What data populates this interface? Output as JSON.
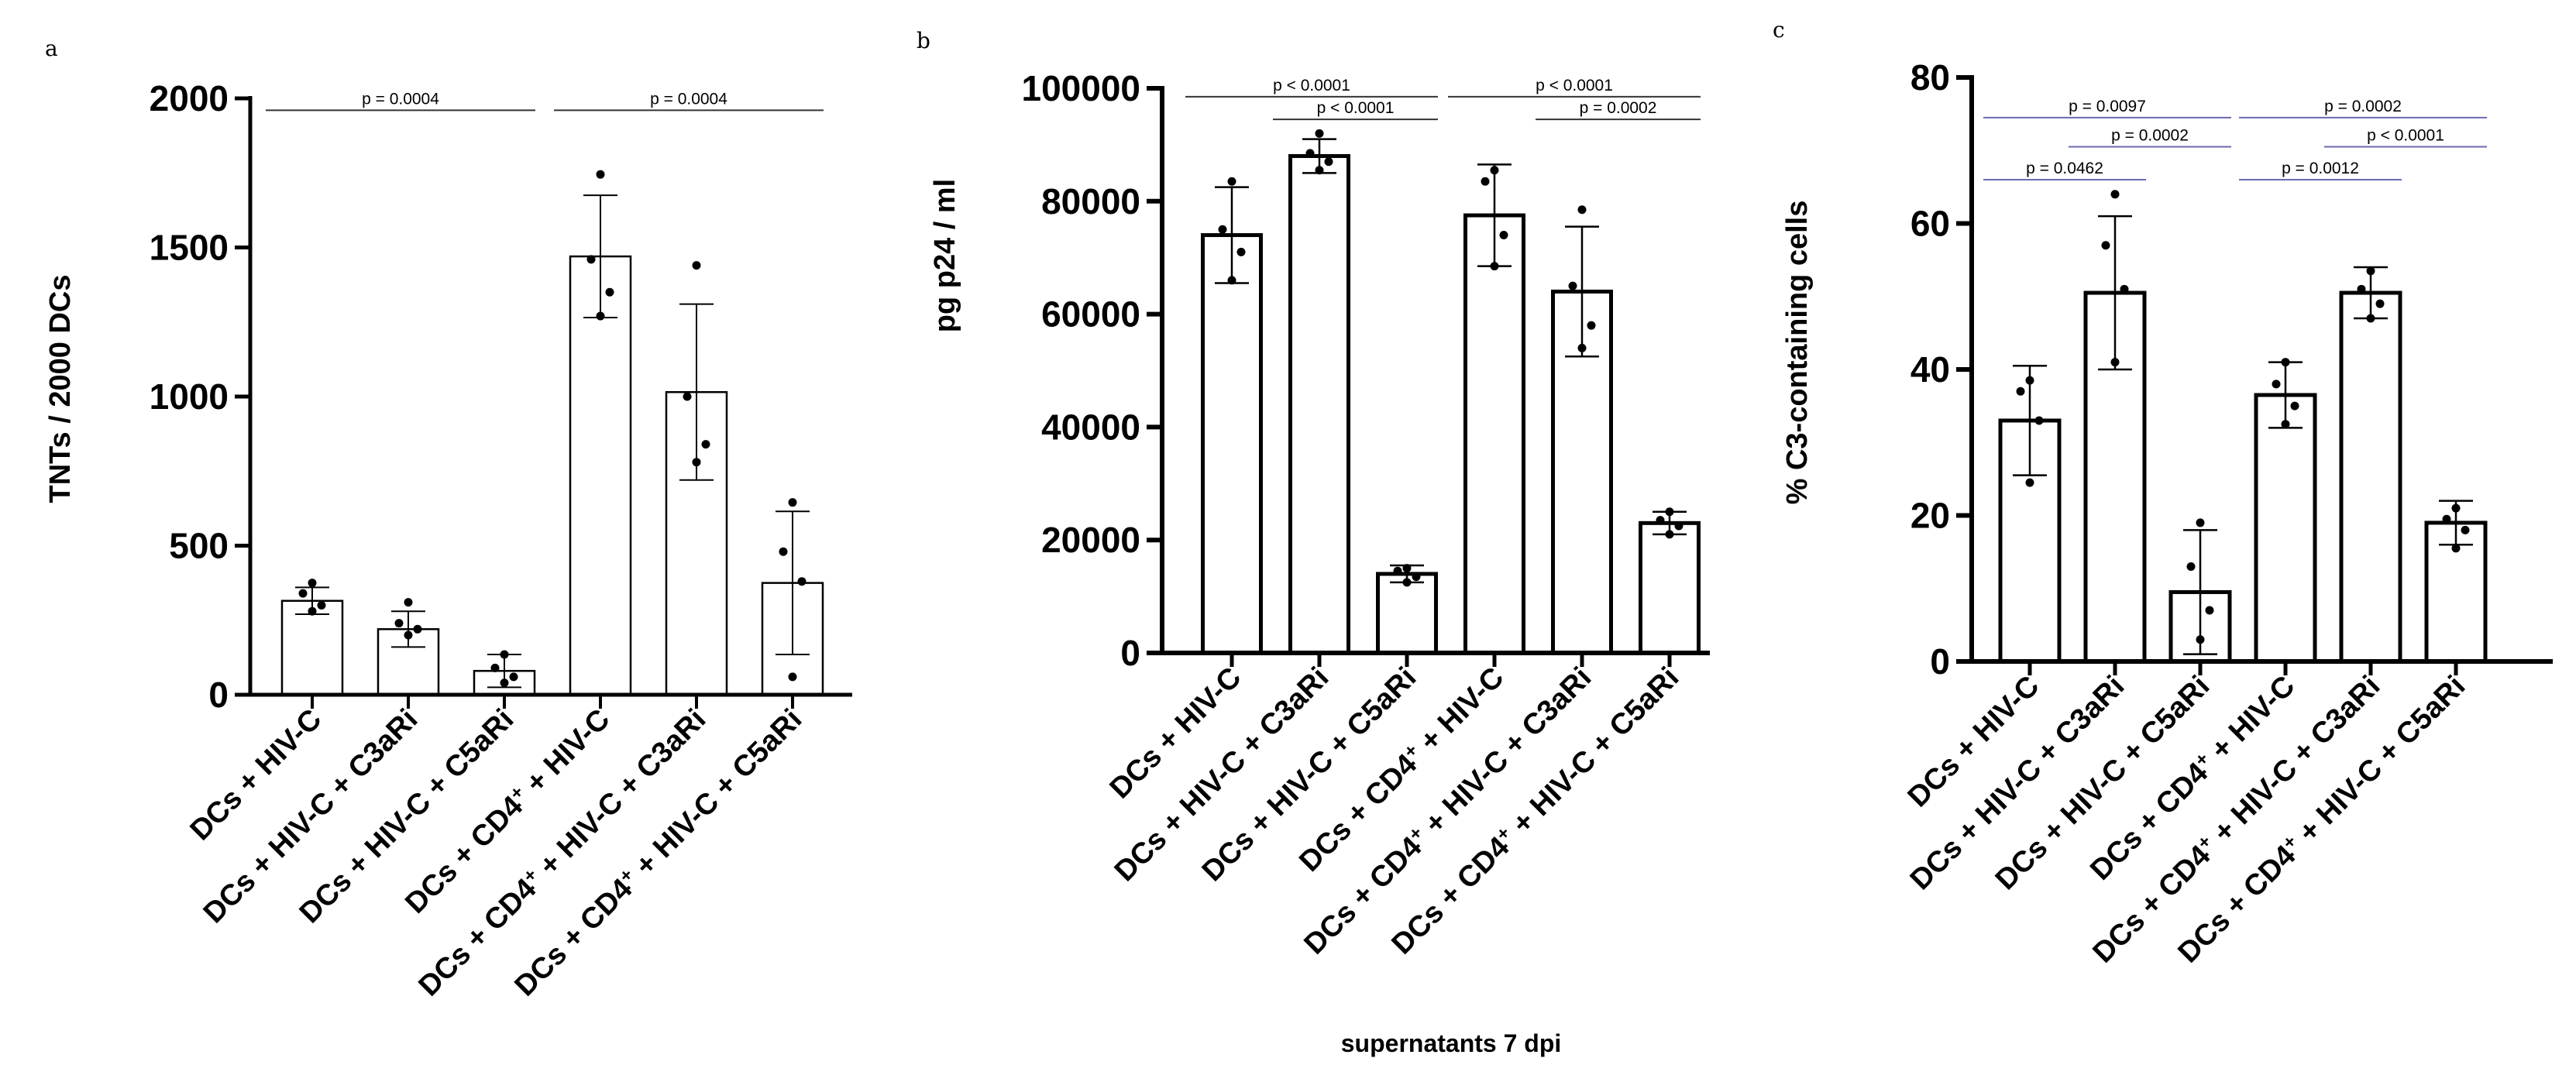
{
  "chart_data": [
    {
      "type": "bar",
      "panel_label": "a",
      "title": "",
      "xlabel": "",
      "ylabel": "TNTs / 2000 DCs",
      "ylim": [
        0,
        2000
      ],
      "yticks": [
        0,
        500,
        1000,
        1500,
        2000
      ],
      "categories": [
        {
          "pre": "DCs + HIV-C",
          "sup": "",
          "post": ""
        },
        {
          "pre": "DCs +  HIV-C + C3aRi",
          "sup": "",
          "post": ""
        },
        {
          "pre": "DCs + HIV-C + C5aRi",
          "sup": "",
          "post": ""
        },
        {
          "pre": "DCs + CD4",
          "sup": "+",
          "post": " + HIV-C"
        },
        {
          "pre": "DCs + CD4",
          "sup": "+",
          "post": " + HIV-C + C3aRi"
        },
        {
          "pre": "DCs + CD4",
          "sup": "+",
          "post": " + HIV-C + C5aRi"
        }
      ],
      "values": [
        315,
        220,
        80,
        1470,
        1015,
        375
      ],
      "errors": [
        45,
        60,
        55,
        205,
        295,
        240
      ],
      "points": [
        [
          375,
          340,
          300,
          280
        ],
        [
          310,
          240,
          220,
          200
        ],
        [
          135,
          90,
          60,
          40
        ],
        [
          1745,
          1460,
          1350,
          1270
        ],
        [
          1440,
          1000,
          840,
          780
        ],
        [
          645,
          480,
          380,
          60
        ]
      ],
      "comparisons": [
        {
          "text": "p = 0.0004",
          "from": 0,
          "to": 2,
          "y": 1960
        },
        {
          "text": "p = 0.0004",
          "from": 3,
          "to": 5,
          "y": 1960
        }
      ],
      "bar_edge_color": "#000000",
      "bracket_color": "#333333"
    },
    {
      "type": "bar",
      "panel_label": "b",
      "title": "",
      "xlabel": "supernatants 7 dpi",
      "ylabel": "pg p24 / ml",
      "ylim": [
        0,
        100000
      ],
      "yticks": [
        0,
        20000,
        40000,
        60000,
        80000,
        100000
      ],
      "categories": [
        {
          "pre": "DCs + HIV-C",
          "sup": "",
          "post": ""
        },
        {
          "pre": "DCs + HIV-C + C3aRi",
          "sup": "",
          "post": ""
        },
        {
          "pre": "DCs + HIV-C + C5aRi",
          "sup": "",
          "post": ""
        },
        {
          "pre": "DCs + CD4",
          "sup": "+",
          "post": " + HIV-C"
        },
        {
          "pre": "DCs + CD4",
          "sup": "+",
          "post": " + HIV-C + C3aRi"
        },
        {
          "pre": "DCs + CD4",
          "sup": "+",
          "post": " + HIV-C + C5aRi"
        }
      ],
      "values": [
        74000,
        88000,
        14000,
        77500,
        64000,
        23000
      ],
      "errors": [
        8500,
        3000,
        1500,
        9000,
        11500,
        2000
      ],
      "points": [
        [
          83500,
          75000,
          71000,
          66000
        ],
        [
          92000,
          88500,
          87000,
          85500
        ],
        [
          15000,
          14500,
          13500,
          12500
        ],
        [
          85500,
          83500,
          74000,
          68500
        ],
        [
          78500,
          65000,
          58000,
          54000
        ],
        [
          25000,
          23500,
          22500,
          21000
        ]
      ],
      "comparisons": [
        {
          "text": "p < 0.0001",
          "from": 0,
          "to": 2,
          "y": 98500
        },
        {
          "text": "p < 0.0001",
          "from": 1,
          "to": 2,
          "y": 94500
        },
        {
          "text": "p < 0.0001",
          "from": 3,
          "to": 5,
          "y": 98500
        },
        {
          "text": "p = 0.0002",
          "from": 4,
          "to": 5,
          "y": 94500
        }
      ],
      "bar_edge_color": "#000000",
      "bracket_color": "#333333"
    },
    {
      "type": "bar",
      "panel_label": "c",
      "title": "",
      "xlabel": "",
      "ylabel": "% C3-containing cells",
      "ylim": [
        0,
        80
      ],
      "yticks": [
        0,
        20,
        40,
        60,
        80
      ],
      "categories": [
        {
          "pre": "DCs + HIV-C",
          "sup": "",
          "post": ""
        },
        {
          "pre": "DCs + HIV-C + C3aRi",
          "sup": "",
          "post": ""
        },
        {
          "pre": "DCs + HIV-C + C5aRi",
          "sup": "",
          "post": ""
        },
        {
          "pre": "DCs + CD4",
          "sup": "+",
          "post": " + HIV-C"
        },
        {
          "pre": "DCs + CD4",
          "sup": "+",
          "post": " + HIV-C + C3aRi"
        },
        {
          "pre": "DCs + CD4",
          "sup": "+",
          "post": " + HIV-C + C5aRi"
        }
      ],
      "values": [
        33,
        50.5,
        9.5,
        36.5,
        50.5,
        19
      ],
      "errors": [
        7.5,
        10.5,
        8.5,
        4.5,
        3.5,
        3
      ],
      "points": [
        [
          38.5,
          37,
          33,
          24.5
        ],
        [
          64,
          57,
          51,
          41
        ],
        [
          19,
          13,
          7,
          3
        ],
        [
          41,
          38,
          35,
          32.5
        ],
        [
          53.5,
          51,
          49,
          47
        ],
        [
          21,
          19.5,
          18,
          15.5
        ]
      ],
      "comparisons": [
        {
          "text": "p = 0.0097",
          "from": 0,
          "to": 2,
          "y": 74.5
        },
        {
          "text": "p = 0.0002",
          "from": 1,
          "to": 2,
          "y": 70.5
        },
        {
          "text": "p = 0.0462",
          "from": 0,
          "to": 1,
          "y": 66
        },
        {
          "text": "p = 0.0002",
          "from": 3,
          "to": 5,
          "y": 74.5
        },
        {
          "text": "p < 0.0001",
          "from": 4,
          "to": 5,
          "y": 70.5
        },
        {
          "text": "p = 0.0012",
          "from": 3,
          "to": 4,
          "y": 66
        }
      ],
      "bar_edge_color": "#000000",
      "bracket_color": "#6a6ab0"
    }
  ]
}
